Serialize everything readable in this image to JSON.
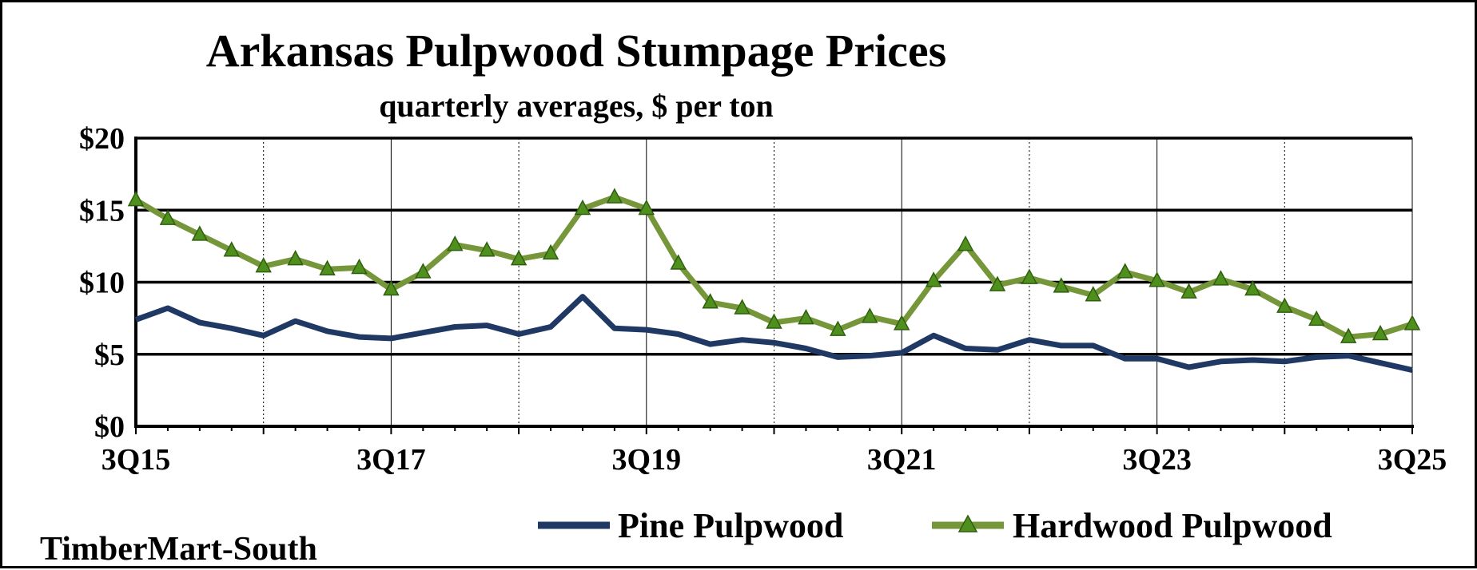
{
  "colors": {
    "pine": "#1f3864",
    "hardwood": "#76963a",
    "hardwood_marker": "#4f8f1e",
    "marker_edge": "#2f5f0e",
    "grid_major": "#000000",
    "grid_minor": "#000000"
  },
  "source_label": "TimberMart-South",
  "chart_data": {
    "type": "line",
    "title": "Arkansas Pulpwood Stumpage Prices",
    "subtitle": "quarterly averages, $ per ton",
    "xlabel": "",
    "ylabel": "",
    "ylim": [
      0,
      20
    ],
    "yticks": [
      0,
      5,
      10,
      15,
      20
    ],
    "ytick_labels": [
      "$0",
      "$5",
      "$10",
      "$15",
      "$20"
    ],
    "xtick_labels": [
      "3Q15",
      "3Q17",
      "3Q19",
      "3Q21",
      "3Q23",
      "3Q25"
    ],
    "x": [
      "3Q15",
      "4Q15",
      "1Q16",
      "2Q16",
      "3Q16",
      "4Q16",
      "1Q17",
      "2Q17",
      "3Q17",
      "4Q17",
      "1Q18",
      "2Q18",
      "3Q18",
      "4Q18",
      "1Q19",
      "2Q19",
      "3Q19",
      "4Q19",
      "1Q20",
      "2Q20",
      "3Q20",
      "4Q20",
      "1Q21",
      "2Q21",
      "3Q21",
      "4Q21",
      "1Q22",
      "2Q22",
      "3Q22",
      "4Q22",
      "1Q23",
      "2Q23",
      "3Q23",
      "4Q23",
      "1Q24",
      "2Q24",
      "3Q24",
      "4Q24",
      "1Q25",
      "2Q25",
      "3Q25"
    ],
    "grid": "horizontal major lines; vertical lines at every 4th quarter",
    "legend_position": "bottom",
    "series": [
      {
        "name": "Pine Pulpwood",
        "marker": "none",
        "values": [
          7.4,
          8.2,
          7.2,
          6.8,
          6.3,
          7.3,
          6.6,
          6.2,
          6.1,
          6.5,
          6.9,
          7.0,
          6.4,
          6.9,
          9.0,
          6.8,
          6.7,
          6.4,
          5.7,
          6.0,
          5.8,
          5.4,
          4.8,
          4.9,
          5.1,
          6.3,
          5.4,
          5.3,
          6.0,
          5.6,
          5.6,
          4.7,
          4.7,
          4.1,
          4.5,
          4.6,
          4.5,
          4.8,
          4.9,
          4.4,
          3.9
        ]
      },
      {
        "name": "Hardwood Pulpwood",
        "marker": "triangle",
        "values": [
          15.7,
          14.4,
          13.3,
          12.2,
          11.1,
          11.6,
          10.9,
          11.0,
          9.5,
          10.7,
          12.6,
          12.2,
          11.6,
          12.0,
          15.1,
          15.9,
          15.1,
          11.3,
          8.6,
          8.2,
          7.2,
          7.5,
          6.7,
          7.6,
          7.1,
          10.1,
          12.6,
          9.8,
          10.3,
          9.7,
          9.1,
          10.7,
          10.1,
          9.3,
          10.2,
          9.5,
          8.3,
          7.4,
          6.2,
          6.4,
          7.1
        ]
      }
    ]
  }
}
